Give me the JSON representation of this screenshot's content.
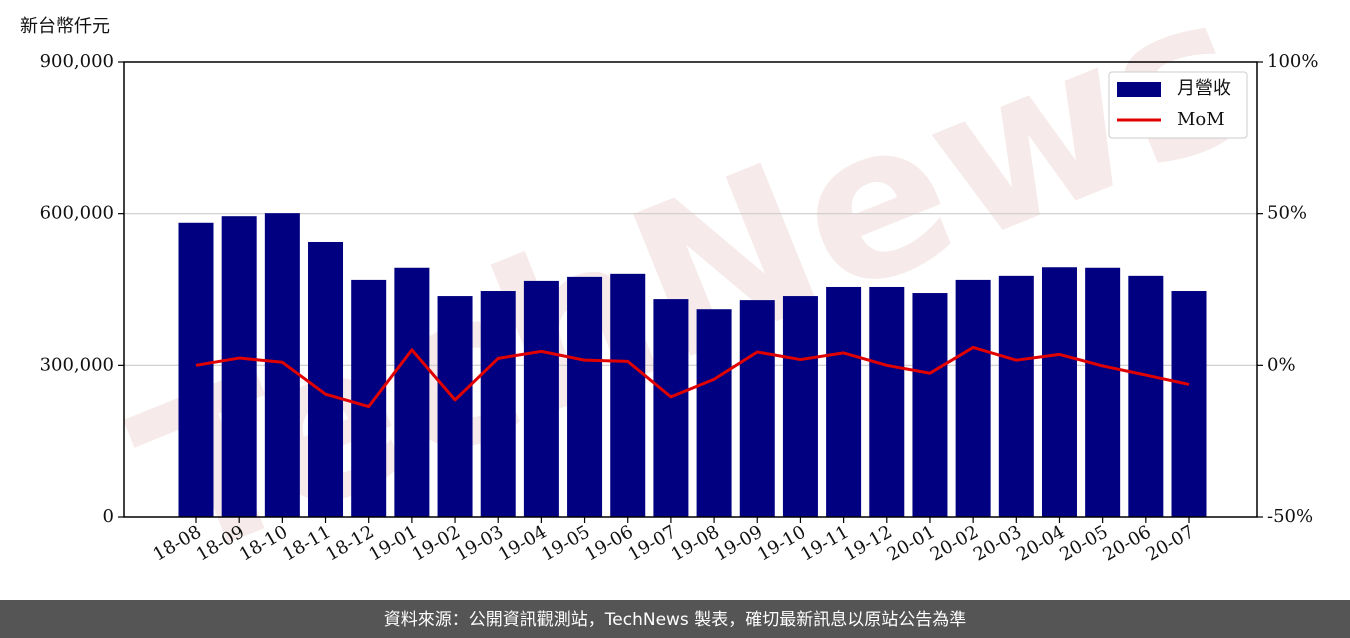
{
  "chart_data": {
    "type": "bar-line",
    "y_label": "新台幣仟元",
    "watermark": "TechNews",
    "footer": "資料來源：公開資訊觀測站，TechNews 製表，確切最新訊息以原站公告為準",
    "categories": [
      "18-08",
      "18-09",
      "18-10",
      "18-11",
      "18-12",
      "19-01",
      "19-02",
      "19-03",
      "19-04",
      "19-05",
      "19-06",
      "19-07",
      "19-08",
      "19-09",
      "19-10",
      "19-11",
      "19-12",
      "20-01",
      "20-02",
      "20-03",
      "20-04",
      "20-05",
      "20-06",
      "20-07"
    ],
    "series": [
      {
        "name": "月營收",
        "type": "bar",
        "color": "#000080",
        "values": [
          582000,
          595000,
          601000,
          544000,
          469000,
          493000,
          437000,
          447000,
          467000,
          475000,
          481000,
          431000,
          411000,
          429000,
          437000,
          455000,
          455000,
          443000,
          469000,
          477000,
          494000,
          493000,
          477000,
          447000
        ]
      },
      {
        "name": "MoM",
        "type": "line",
        "axis": "y2",
        "color": "#e00000",
        "values": [
          0,
          2.4,
          1.0,
          -9.5,
          -13.6,
          5.1,
          -11.4,
          2.3,
          4.6,
          1.7,
          1.3,
          -10.4,
          -4.6,
          4.4,
          1.9,
          4.1,
          0.0,
          -2.6,
          5.9,
          1.7,
          3.6,
          -0.2,
          -3.2,
          -6.3
        ]
      }
    ],
    "ylim": [
      0,
      900000
    ],
    "yticks": [
      0,
      {
        "value": 300000,
        "label": "300,000"
      },
      {
        "value": 600000,
        "label": "600,000"
      },
      {
        "value": 900000,
        "label": "900,000"
      }
    ],
    "y2lim": [
      -50,
      100
    ],
    "y2ticks": [
      {
        "value": -50,
        "label": "-50%"
      },
      {
        "value": 0,
        "label": "0%"
      },
      {
        "value": 50,
        "label": "50%"
      },
      {
        "value": 100,
        "label": "100%"
      }
    ],
    "grid": true,
    "legend": "upper right"
  }
}
